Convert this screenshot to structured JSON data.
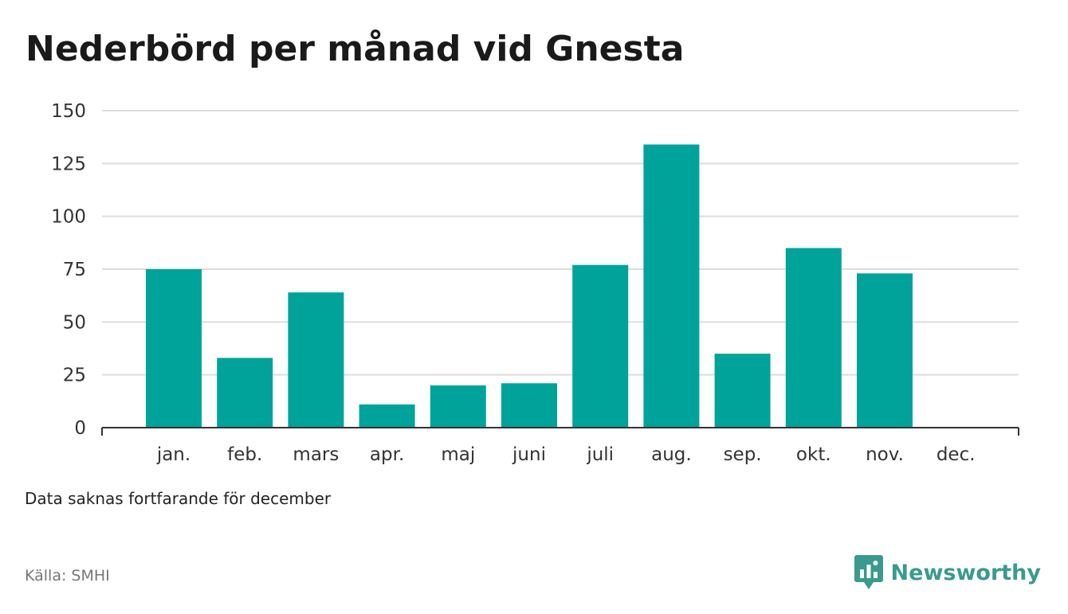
{
  "title": "Nederbörd per månad vid Gnesta",
  "note": "Data saknas fortfarande för december",
  "source": "Källa: SMHI",
  "brand": {
    "name": "Newsworthy",
    "color": "#3a9a8e",
    "icon": "bar-chart-speech-bubble-icon"
  },
  "colors": {
    "bar": "#00a39a",
    "grid": "#dddddd",
    "axis": "#333333"
  },
  "chart_data": {
    "type": "bar",
    "categories": [
      "jan.",
      "feb.",
      "mars",
      "apr.",
      "maj",
      "juni",
      "juli",
      "aug.",
      "sep.",
      "okt.",
      "nov.",
      "dec."
    ],
    "values": [
      75,
      33,
      64,
      11,
      20,
      21,
      77,
      134,
      35,
      85,
      73,
      null
    ],
    "yticks": [
      0,
      25,
      50,
      75,
      100,
      125,
      150
    ],
    "ylim": [
      0,
      150
    ],
    "grid": true,
    "legend": false
  }
}
